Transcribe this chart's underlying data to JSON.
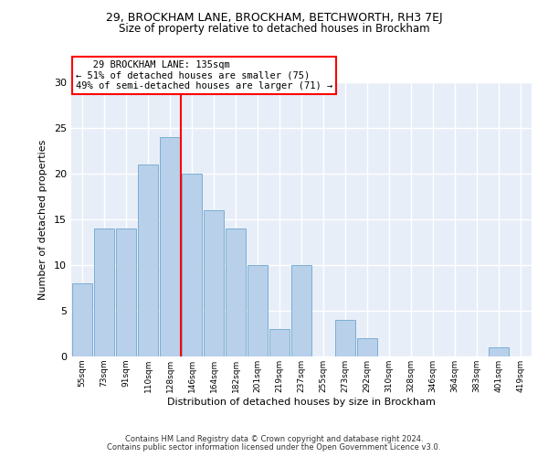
{
  "title1": "29, BROCKHAM LANE, BROCKHAM, BETCHWORTH, RH3 7EJ",
  "title2": "Size of property relative to detached houses in Brockham",
  "xlabel": "Distribution of detached houses by size in Brockham",
  "ylabel": "Number of detached properties",
  "bins": [
    "55sqm",
    "73sqm",
    "91sqm",
    "110sqm",
    "128sqm",
    "146sqm",
    "164sqm",
    "182sqm",
    "201sqm",
    "219sqm",
    "237sqm",
    "255sqm",
    "273sqm",
    "292sqm",
    "310sqm",
    "328sqm",
    "346sqm",
    "364sqm",
    "383sqm",
    "401sqm",
    "419sqm"
  ],
  "values": [
    8,
    14,
    14,
    21,
    24,
    20,
    16,
    14,
    10,
    3,
    10,
    0,
    4,
    2,
    0,
    0,
    0,
    0,
    0,
    1,
    0
  ],
  "bar_color": "#b8d0ea",
  "bar_edge_color": "#7aafd4",
  "red_line_x": 4.5,
  "annotation_line1": "   29 BROCKHAM LANE: 135sqm",
  "annotation_line2": "← 51% of detached houses are smaller (75)",
  "annotation_line3": "49% of semi-detached houses are larger (71) →",
  "footer1": "Contains HM Land Registry data © Crown copyright and database right 2024.",
  "footer2": "Contains public sector information licensed under the Open Government Licence v3.0.",
  "ylim": [
    0,
    30
  ],
  "yticks": [
    0,
    5,
    10,
    15,
    20,
    25,
    30
  ],
  "bg_color": "#e8eef8"
}
